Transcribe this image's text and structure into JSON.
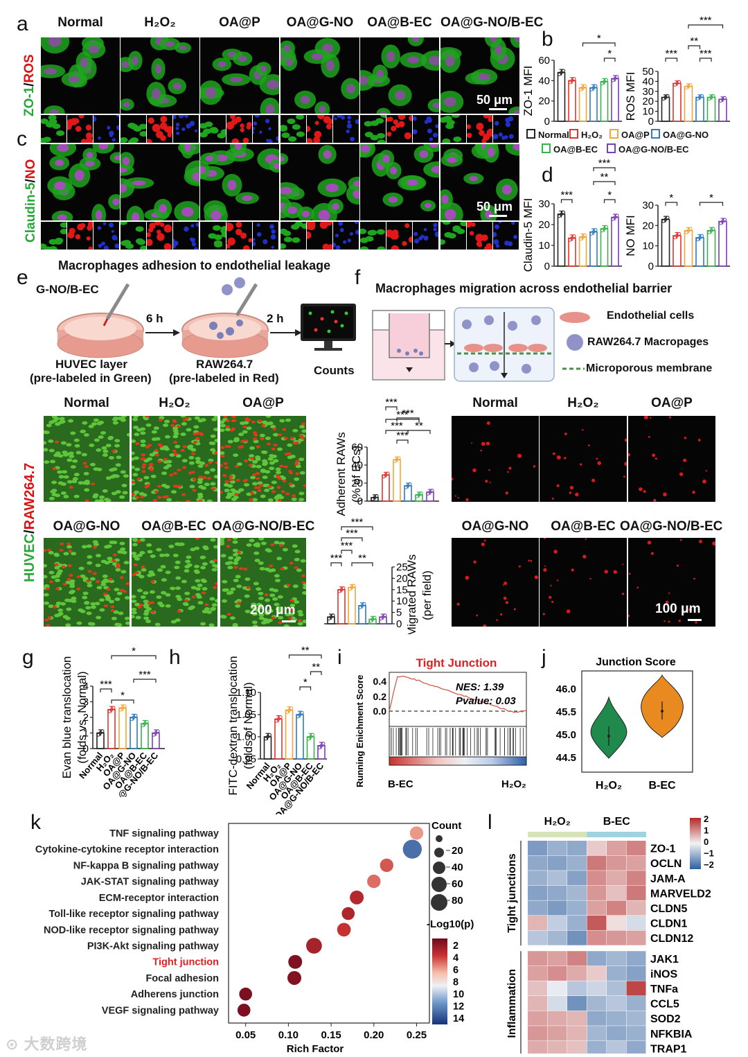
{
  "panel_letters": {
    "a": "a",
    "b": "b",
    "c": "c",
    "d": "d",
    "e": "e",
    "f": "f",
    "g": "g",
    "h": "h",
    "i": "i",
    "j": "j",
    "k": "k",
    "l": "l"
  },
  "groups": [
    "Normal",
    "H₂O₂",
    "OA@P",
    "OA@G-NO",
    "OA@B-EC",
    "OA@G-NO/B-EC"
  ],
  "group_colors": [
    "#222222",
    "#e0332e",
    "#f2a43a",
    "#2f79c0",
    "#35b34a",
    "#7a3fb0"
  ],
  "panel_a": {
    "row_label_green": "ZO-1",
    "row_label_sep": "/",
    "row_label_red": "ROS",
    "scale_bar": "50 μm"
  },
  "panel_c": {
    "row_label_green": "Claudin-5",
    "row_label_sep": "/",
    "row_label_red": "NO",
    "scale_bar": "50 μm"
  },
  "legend_bd": {
    "items": [
      "Normal",
      "H₂O₂",
      "OA@P",
      "OA@G-NO",
      "OA@B-EC",
      "OA@G-NO/B-EC"
    ]
  },
  "panel_e": {
    "title": "Macrophages adhesion to endothelial leakage",
    "step1_top": "G-NO/B-EC",
    "step1_bottom_line1": "HUVEC layer",
    "step1_bottom_line2": "(pre-labeled in Green)",
    "arrow1": "6 h",
    "step2_bottom_line1": "RAW264.7",
    "step2_bottom_line2": "(pre-labeled in Red)",
    "arrow2": "2 h",
    "step3": "Counts",
    "row_label_green": "HUVEC",
    "row_label_sep": "/",
    "row_label_red": "RAW264.7",
    "top_headers": [
      "Normal",
      "H₂O₂",
      "OA@P"
    ],
    "bottom_headers": [
      "OA@G-NO",
      "OA@B-EC",
      "OA@G-NO/B-EC"
    ],
    "scale_bar": "200 μm"
  },
  "panel_f": {
    "title": "Macrophages migration across endothelial barrier",
    "legend": [
      "Endothelial cells",
      "RAW264.7 Macropages",
      "Microporous membrane"
    ],
    "top_headers": [
      "Normal",
      "H₂O₂",
      "OA@P"
    ],
    "bottom_headers": [
      "OA@G-NO",
      "OA@B-EC",
      "OA@G-NO/B-EC"
    ],
    "scale_bar": "100 μm"
  },
  "panel_i": {
    "title": "Tight Junction",
    "nes": "NES: 1.39",
    "pvalue": "Pvalue: 0.03",
    "ylabel": "Running Enichment Score",
    "left": "B-EC",
    "right": "H₂O₂",
    "yticks": [
      "0.4",
      "0.2",
      "0.0"
    ]
  },
  "panel_j": {
    "title": "Junction Score",
    "groups": [
      "H₂O₂",
      "B-EC"
    ],
    "yticks": [
      "46.0",
      "45.5",
      "45.0",
      "44.5"
    ]
  },
  "panel_l": {
    "col_groups": [
      "H₂O₂",
      "B-EC"
    ],
    "row_groups": [
      "Tight junctions",
      "Inflammation"
    ],
    "genes": [
      "ZO-1",
      "OCLN",
      "JAM-A",
      "MARVELD2",
      "CLDN5",
      "CLDN1",
      "CLDN12",
      "JAK1",
      "iNOS",
      "TNFa",
      "CCL5",
      "SOD2",
      "NFKBIA",
      "TRAP1"
    ],
    "scale_ticks": [
      "2",
      "1",
      "0",
      "−1",
      "−2"
    ],
    "values": [
      [
        -1.2,
        -0.9,
        -1.0,
        0.4,
        0.8,
        1.1
      ],
      [
        -1.0,
        -1.1,
        -0.9,
        1.2,
        0.9,
        0.8
      ],
      [
        -0.9,
        -0.7,
        -1.1,
        1.0,
        0.7,
        1.1
      ],
      [
        -1.1,
        -1.0,
        -0.8,
        0.9,
        0.5,
        1.2
      ],
      [
        -1.0,
        -1.2,
        -0.9,
        0.8,
        1.1,
        0.6
      ],
      [
        0.6,
        -0.5,
        -0.9,
        1.5,
        0.2,
        -0.3
      ],
      [
        -0.6,
        -0.8,
        -1.3,
        1.0,
        0.9,
        0.8
      ],
      [
        0.9,
        0.8,
        1.1,
        -1.0,
        -0.8,
        -1.0
      ],
      [
        0.8,
        1.0,
        0.7,
        0.4,
        -0.9,
        -1.1
      ],
      [
        0.5,
        -0.1,
        -0.6,
        -0.4,
        -0.7,
        1.7
      ],
      [
        0.6,
        -0.3,
        -1.3,
        -0.8,
        -0.6,
        -0.9
      ],
      [
        0.8,
        0.7,
        0.6,
        -1.0,
        -0.9,
        -0.8
      ],
      [
        0.9,
        0.8,
        0.6,
        -0.8,
        -1.0,
        -0.9
      ],
      [
        0.7,
        0.6,
        0.5,
        -0.9,
        -0.6,
        -1.0
      ]
    ]
  },
  "chart_data": [
    {
      "id": "b-zo1",
      "type": "bar",
      "categories": [
        "Normal",
        "H₂O₂",
        "OA@P",
        "OA@G-NO",
        "OA@B-EC",
        "OA@G-NO/B-EC"
      ],
      "values": [
        48,
        40,
        33,
        33,
        39,
        42
      ],
      "ylabel": "ZO-1 MFI",
      "ylim": [
        0,
        60
      ],
      "yticks": [
        "0",
        "20",
        "40",
        "60"
      ],
      "sig": [
        "*",
        "*"
      ]
    },
    {
      "id": "b-ros",
      "type": "bar",
      "categories": [
        "Normal",
        "H₂O₂",
        "OA@P",
        "OA@G-NO",
        "OA@B-EC",
        "OA@G-NO/B-EC"
      ],
      "values": [
        24,
        38,
        35,
        24,
        24,
        22
      ],
      "ylabel": "ROS MFI",
      "ylim": [
        0,
        50
      ],
      "yticks": [
        "0",
        "10",
        "20",
        "30",
        "40",
        "50"
      ],
      "sig": [
        "***",
        "***",
        "**",
        "***"
      ]
    },
    {
      "id": "d-cld5",
      "type": "bar",
      "categories": [
        "Normal",
        "H₂O₂",
        "OA@P",
        "OA@G-NO",
        "OA@B-EC",
        "OA@G-NO/B-EC"
      ],
      "values": [
        25,
        13.5,
        14,
        16.5,
        18,
        23.5
      ],
      "ylabel": "Claudin-5 MFI",
      "ylim": [
        0,
        30
      ],
      "yticks": [
        "0",
        "10",
        "20",
        "30"
      ],
      "sig": [
        "***",
        "***",
        "**",
        "*"
      ]
    },
    {
      "id": "d-no",
      "type": "bar",
      "categories": [
        "Normal",
        "H₂O₂",
        "OA@P",
        "OA@G-NO",
        "OA@B-EC",
        "OA@G-NO/B-EC"
      ],
      "values": [
        23,
        15,
        17.5,
        14,
        17.5,
        22
      ],
      "ylabel": "NO MFI",
      "ylim": [
        0,
        30
      ],
      "yticks": [
        "0",
        "10",
        "20",
        "30"
      ],
      "sig": [
        "*",
        "*"
      ]
    },
    {
      "id": "e-adh",
      "type": "bar",
      "categories": [
        "Normal",
        "H₂O₂",
        "OA@P",
        "OA@G-NO",
        "OA@B-EC",
        "OA@G-NO/B-EC"
      ],
      "values": [
        4,
        29,
        46,
        17,
        7,
        10
      ],
      "ylabel": "Adherent RAWs",
      "ylabel2": "(% of ECs)",
      "ylim": [
        0,
        60
      ],
      "yticks": [
        "0",
        "20",
        "40",
        "60"
      ],
      "sig": [
        "***",
        "***",
        "***",
        "***",
        "***",
        "**"
      ]
    },
    {
      "id": "f-mig",
      "type": "bar",
      "categories": [
        "Normal",
        "H₂O₂",
        "OA@P",
        "OA@G-NO",
        "OA@B-EC",
        "OA@G-NO/B-EC"
      ],
      "values": [
        3,
        15,
        16,
        8,
        2,
        3
      ],
      "ylabel": "Migrated RAWs",
      "ylabel2": "(per field)",
      "ylim": [
        0,
        25
      ],
      "yticks": [
        "0",
        "5",
        "10",
        "15",
        "20",
        "25"
      ],
      "sig": [
        "***",
        "***",
        "***",
        "***",
        "**"
      ]
    },
    {
      "id": "g-evan",
      "type": "bar",
      "categories": [
        "Normal",
        "H₂O₂",
        "OA@P",
        "OA@G-NO",
        "OA@B-EC",
        "OA@G-NO/B-EC"
      ],
      "values": [
        1.0,
        2.5,
        2.6,
        2.0,
        1.6,
        1.0
      ],
      "ylabel": "Evan blue translocation",
      "ylabel2": "(folds vs. Normal)",
      "ylim": [
        0,
        4
      ],
      "yticks": [
        "0",
        "1",
        "2",
        "3",
        "4"
      ],
      "sig": [
        "***",
        "*",
        "*",
        "***"
      ]
    },
    {
      "id": "h-fitc",
      "type": "bar",
      "categories": [
        "Normal",
        "H₂O₂",
        "OA@P",
        "OA@G-NO",
        "OA@B-EC",
        "OA@G-NO/B-EC"
      ],
      "values": [
        1.0,
        1.04,
        1.06,
        1.05,
        1.0,
        0.98
      ],
      "ylabel": "FITC-dextran translocation",
      "ylabel2": "(folds of Normal)",
      "ylim": [
        0.95,
        1.1
      ],
      "yticks": [
        "0.95",
        "1.00",
        "1.05",
        "1.10"
      ],
      "sig": [
        "*",
        "**",
        "**"
      ]
    },
    {
      "id": "k-kegg",
      "type": "scatter",
      "xlabel": "Rich Factor",
      "xticks": [
        "0.05",
        "0.10",
        "0.15",
        "0.20",
        "0.25"
      ],
      "pathways": [
        "TNF signaling pathway",
        "Cytokine-cytokine receptor interaction",
        "NF-kappa B signaling pathway",
        "JAK-STAT signaling pathway",
        "ECM-receptor interaction",
        "Toll-like receptor signaling pathway",
        "NOD-like receptor signaling pathway",
        "PI3K-Akt signaling pathway",
        "Tight junction",
        "Focal adhesion",
        "Adherens junction",
        "VEGF signaling pathway"
      ],
      "rich_factor": [
        0.25,
        0.245,
        0.215,
        0.2,
        0.18,
        0.17,
        0.165,
        0.13,
        0.108,
        0.107,
        0.05,
        0.048
      ],
      "count": [
        14,
        48,
        14,
        14,
        16,
        12,
        15,
        26,
        16,
        16,
        12,
        12
      ],
      "neglog10p": [
        5.5,
        12.0,
        4.3,
        4.7,
        3.0,
        2.8,
        3.5,
        2.6,
        1.5,
        1.6,
        1.4,
        1.4
      ],
      "size_legend_title": "Count",
      "size_legend": [
        "20",
        "40",
        "60",
        "80"
      ],
      "color_legend_title": "-Log10(p)",
      "color_legend": [
        "2",
        "4",
        "6",
        "8",
        "10",
        "12",
        "14"
      ]
    }
  ]
}
